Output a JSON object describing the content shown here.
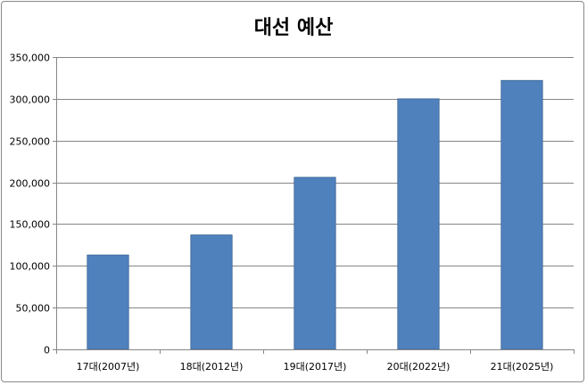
{
  "chart_data": {
    "type": "bar",
    "title": "대선 예산",
    "xlabel": "",
    "ylabel": "",
    "categories": [
      "17대(2007년)",
      "18대(2012년)",
      "19대(2017년)",
      "20대(2022년)",
      "21대(2025년)"
    ],
    "values": [
      113000,
      137000,
      206000,
      300000,
      322000
    ],
    "ylim": [
      0,
      350000
    ],
    "yticks": [
      0,
      50000,
      100000,
      150000,
      200000,
      250000,
      300000,
      350000
    ],
    "ytick_labels": [
      "0",
      "50,000",
      "100,000",
      "150,000",
      "200,000",
      "250,000",
      "300,000",
      "350,000"
    ],
    "grid": true,
    "legend": "none",
    "bar_color": "#4f81bd",
    "bar_edge_color": "#3c6494",
    "grid_color": "#868686",
    "axis_color": "#868686"
  }
}
